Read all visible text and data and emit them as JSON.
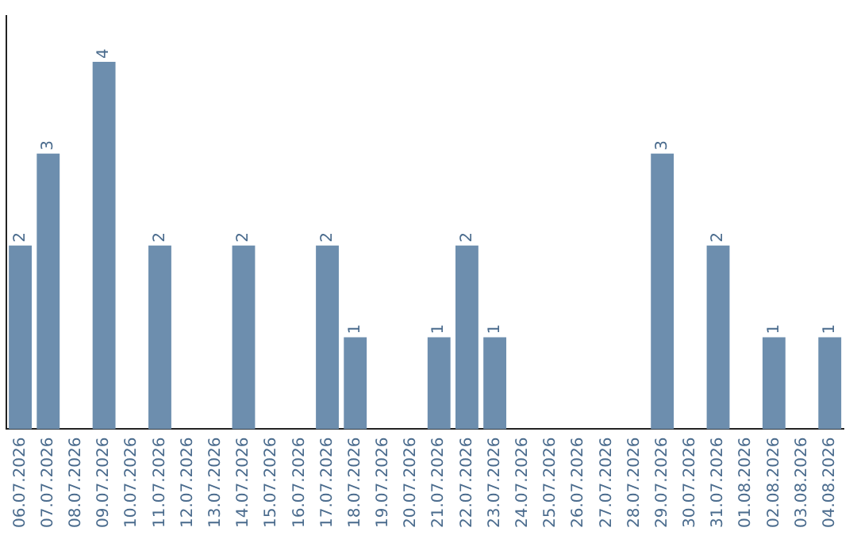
{
  "chart_data": {
    "type": "bar",
    "categories": [
      "06.07.2026",
      "07.07.2026",
      "08.07.2026",
      "09.07.2026",
      "10.07.2026",
      "11.07.2026",
      "12.07.2026",
      "13.07.2026",
      "14.07.2026",
      "15.07.2026",
      "16.07.2026",
      "17.07.2026",
      "18.07.2026",
      "19.07.2026",
      "20.07.2026",
      "21.07.2026",
      "22.07.2026",
      "23.07.2026",
      "24.07.2026",
      "25.07.2026",
      "26.07.2026",
      "27.07.2026",
      "28.07.2026",
      "29.07.2026",
      "30.07.2026",
      "31.07.2026",
      "01.08.2026",
      "02.08.2026",
      "03.08.2026",
      "04.08.2026"
    ],
    "values": [
      2,
      3,
      0,
      4,
      0,
      2,
      0,
      0,
      2,
      0,
      0,
      2,
      1,
      0,
      0,
      1,
      2,
      1,
      0,
      0,
      0,
      0,
      0,
      3,
      0,
      2,
      0,
      1,
      0,
      1
    ],
    "value_labels": [
      "2",
      "3",
      null,
      "4",
      null,
      "2",
      null,
      null,
      "2",
      null,
      null,
      "2",
      "1",
      null,
      null,
      "1",
      "2",
      "1",
      null,
      null,
      null,
      null,
      null,
      "3",
      null,
      "2",
      null,
      "1",
      null,
      "1"
    ],
    "color": "#6d8eae",
    "tick_labels": "x",
    "grid": false,
    "legend": false
  }
}
